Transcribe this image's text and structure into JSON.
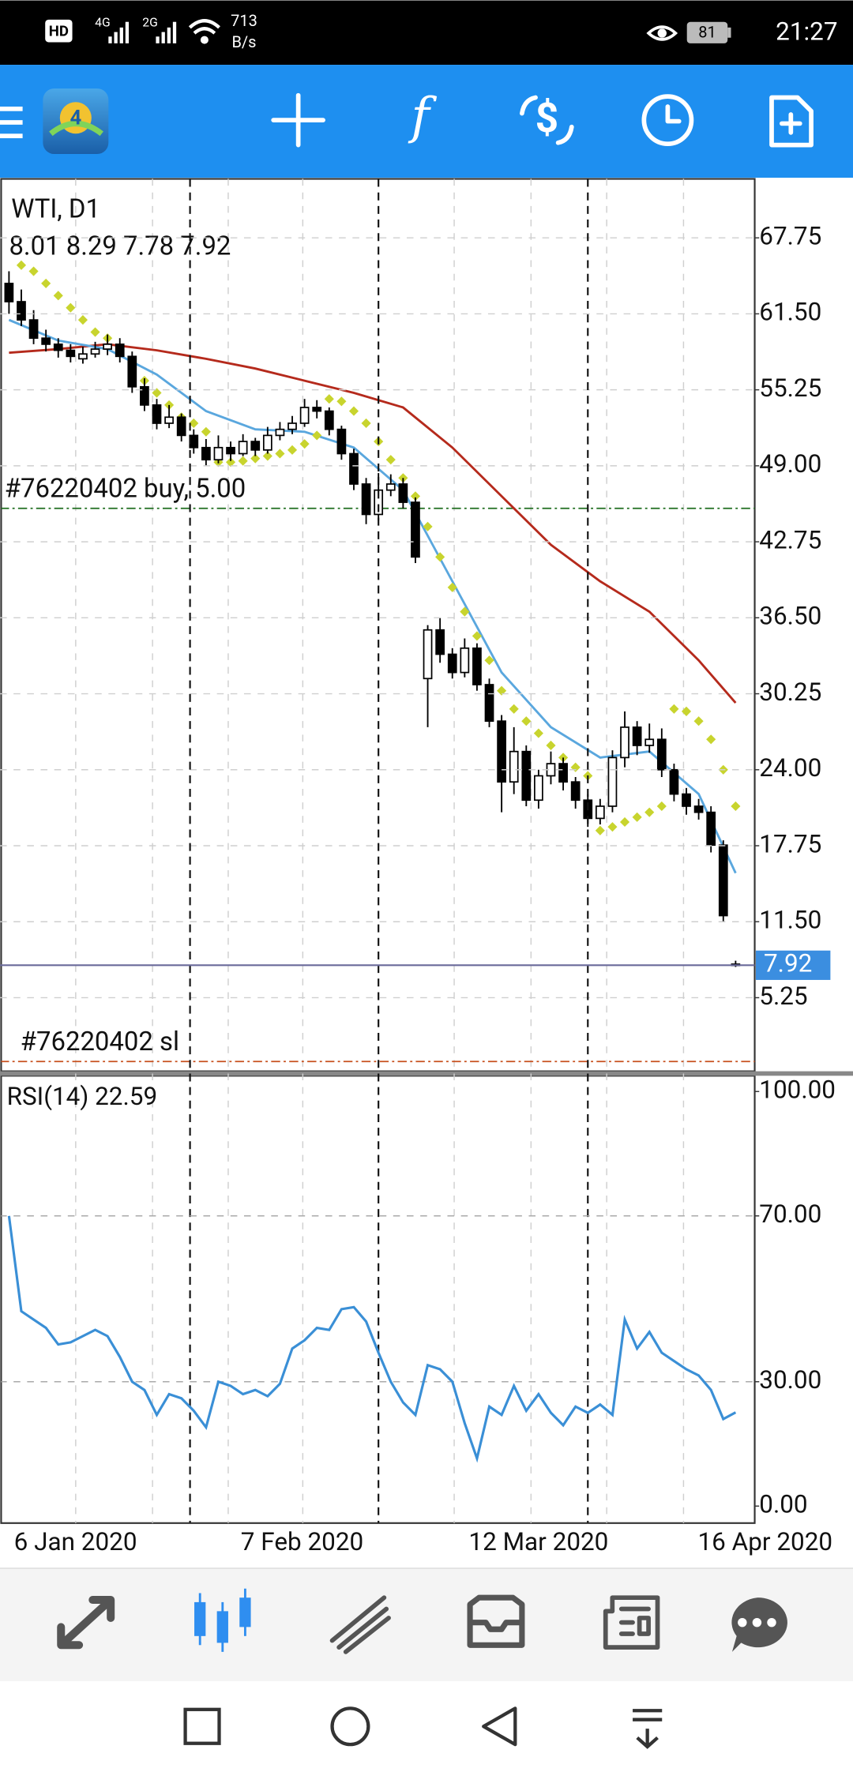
{
  "status_bar": {
    "hd": "HD",
    "net1": "4G",
    "net2": "2G",
    "network_speed": "713",
    "network_unit": "B/s",
    "battery": "81",
    "time": "21:27"
  },
  "chart_data": [
    {
      "type": "candlestick",
      "title": "WTI, D1",
      "ohlc_label": "8.01 8.29 7.78 7.92",
      "open": [
        64,
        62.5,
        61,
        59.5,
        59,
        58.5,
        57.8,
        58.2,
        58.6,
        59,
        58,
        55.5,
        54,
        52.5,
        53,
        51.5,
        50.5,
        49.5,
        50.5,
        50,
        51,
        50.3,
        51.5,
        52,
        52.5,
        53.8,
        53.5,
        52,
        50,
        47.5,
        45,
        47,
        47.5,
        46,
        31.5,
        35.5,
        33.5,
        32,
        34,
        31,
        28,
        23,
        25.5,
        21.5,
        23.5,
        24.5,
        23,
        21.5,
        20,
        21,
        25,
        27.5,
        26,
        26.5,
        24,
        22,
        21,
        20.5,
        17.8,
        8.01
      ],
      "high": [
        65,
        63.5,
        61.8,
        60.2,
        59.5,
        59,
        58.8,
        59.2,
        59.8,
        59.5,
        58.4,
        56.2,
        54.5,
        54,
        53.3,
        52,
        51.2,
        51.5,
        51,
        51.6,
        51.3,
        52.2,
        52.6,
        53.1,
        54.5,
        54.4,
        53.8,
        52.3,
        50.4,
        48,
        48.4,
        48.3,
        48,
        46.4,
        35.9,
        36.5,
        34,
        34.8,
        34.4,
        31.5,
        28.5,
        27.5,
        26,
        24,
        25.5,
        25,
        23.4,
        22,
        21.6,
        25.6,
        28.8,
        28,
        27.8,
        27.4,
        24.5,
        22.5,
        21.6,
        21,
        18.2,
        8.29
      ],
      "low": [
        61.5,
        60.5,
        59,
        58.4,
        57.9,
        57.5,
        57.4,
        57.9,
        58.1,
        57.5,
        55,
        53.5,
        52,
        52.1,
        51,
        50,
        49,
        49.2,
        49.4,
        49.8,
        49.8,
        50,
        51.1,
        51.6,
        52.2,
        52.9,
        51.5,
        49.5,
        47,
        44.2,
        44.5,
        46.5,
        45.5,
        41,
        27.5,
        32.8,
        31.5,
        31.6,
        30.5,
        27.5,
        20.5,
        22,
        21,
        20.8,
        22.8,
        22.3,
        20.8,
        19.3,
        19.5,
        20.5,
        24.2,
        25.2,
        25.4,
        23.4,
        21.4,
        20.3,
        19.9,
        17.2,
        11.5,
        7.78
      ],
      "close": [
        62.5,
        61,
        59.5,
        59,
        58.5,
        58,
        58.2,
        58.6,
        59,
        58,
        55.5,
        54,
        52.5,
        53,
        51.5,
        50.5,
        49.5,
        50.5,
        50,
        51,
        50.3,
        51.5,
        52,
        52.5,
        53.8,
        53.5,
        52,
        50,
        47.5,
        45,
        47,
        47.5,
        46,
        41.5,
        35.5,
        33.5,
        32,
        34,
        31,
        28,
        23,
        25.5,
        21.5,
        23.5,
        24.5,
        23,
        21.5,
        20,
        21,
        25,
        27.5,
        26,
        26.5,
        24,
        22,
        21,
        20.5,
        17.8,
        12,
        7.92
      ],
      "up_color": "#ffffff",
      "down_color": "#000000",
      "ma_slow": {
        "color": "#b52a1c",
        "x": [
          0,
          4,
          8,
          12,
          16,
          20,
          24,
          28,
          32,
          36,
          40,
          44,
          48,
          52,
          56,
          59
        ],
        "values": [
          58.3,
          58.6,
          59,
          58.5,
          57.8,
          57,
          56,
          55,
          53.8,
          50.5,
          46.5,
          42.5,
          39.5,
          37,
          33,
          29.5
        ]
      },
      "ma_fast": {
        "color": "#5aa7de",
        "x": [
          0,
          4,
          8,
          12,
          16,
          20,
          24,
          28,
          32,
          36,
          40,
          44,
          48,
          52,
          56,
          59
        ],
        "values": [
          61,
          59.3,
          58.6,
          56.5,
          53.5,
          52,
          51.8,
          50.5,
          47,
          39.5,
          32,
          27.5,
          25,
          25.5,
          22,
          15.5
        ]
      },
      "sar": {
        "color": "#c8d42e",
        "values": [
          null,
          65.5,
          65,
          64,
          63,
          62,
          61,
          60,
          59.5,
          58.5,
          57.5,
          56,
          55,
          54,
          53,
          52.5,
          51.8,
          49.3,
          49.3,
          49.4,
          49.6,
          49.8,
          50,
          50.3,
          50.8,
          51.5,
          54.5,
          54.3,
          53.5,
          52.5,
          51,
          49.5,
          48,
          46.5,
          44,
          41.5,
          39,
          37,
          35,
          33,
          30.5,
          29,
          28,
          27,
          26,
          25,
          24.2,
          23.5,
          19,
          19.3,
          19.7,
          20.1,
          20.5,
          21,
          29,
          28.8,
          28,
          26.5,
          24,
          21
        ]
      },
      "current_price": 7.92,
      "current_price_color": "#3b8ee0",
      "orders": [
        {
          "label": "#76220402 buy, 5.00",
          "price": 45.5,
          "color": "#1f6e1f"
        },
        {
          "label": "#76220402 sl",
          "price": 0,
          "color": "#c8501e"
        }
      ],
      "xlim": [
        -0.73,
        60.55
      ],
      "ylim": [
        -0.8,
        72.6
      ],
      "yticks": [
        {
          "value": 67.75,
          "label": "67.75"
        },
        {
          "value": 61.5,
          "label": "61.50"
        },
        {
          "value": 55.25,
          "label": "55.25"
        },
        {
          "value": 49,
          "label": "49.00"
        },
        {
          "value": 42.75,
          "label": "42.75"
        },
        {
          "value": 36.5,
          "label": "36.50"
        },
        {
          "value": 30.25,
          "label": "30.25"
        },
        {
          "value": 24,
          "label": "24.00"
        },
        {
          "value": 17.75,
          "label": "17.75"
        },
        {
          "value": 11.5,
          "label": "11.50"
        },
        {
          "value": 5.25,
          "label": "5.25"
        }
      ],
      "xticks": [
        {
          "value": 5.4,
          "label": "6 Jan 2020"
        },
        {
          "value": 23.8,
          "label": "7 Feb 2020"
        },
        {
          "value": 43,
          "label": "12 Mar 2020"
        },
        {
          "value": 61.4,
          "label": "16 Apr 2020"
        }
      ],
      "separators": [
        14.7,
        30,
        47
      ],
      "grid": true
    },
    {
      "type": "line",
      "title": "RSI(14) 22.59",
      "color": "#3a8fd6",
      "values": [
        70,
        47,
        45,
        43,
        39,
        39.5,
        41,
        42.5,
        41,
        36,
        30,
        28,
        22,
        27,
        26,
        23,
        19,
        30,
        29,
        27,
        28,
        26.5,
        29.5,
        38,
        40,
        43,
        42.5,
        47.5,
        48,
        44.5,
        37,
        30,
        25,
        22,
        34,
        33,
        30,
        20,
        11.5,
        24,
        22,
        29,
        23,
        27,
        22.5,
        19.5,
        24,
        22.5,
        24.5,
        22,
        45,
        38,
        42,
        37,
        35,
        33,
        31.5,
        28,
        21,
        22.59
      ],
      "xlim": [
        -0.73,
        60.55
      ],
      "ylim": [
        -4.1,
        103.8
      ],
      "yticks": [
        {
          "value": 100,
          "label": "100.00"
        },
        {
          "value": 70,
          "label": "70.00"
        },
        {
          "value": 30,
          "label": "30.00"
        },
        {
          "value": 0,
          "label": "0.00"
        }
      ],
      "levels": [
        70,
        30
      ]
    }
  ]
}
